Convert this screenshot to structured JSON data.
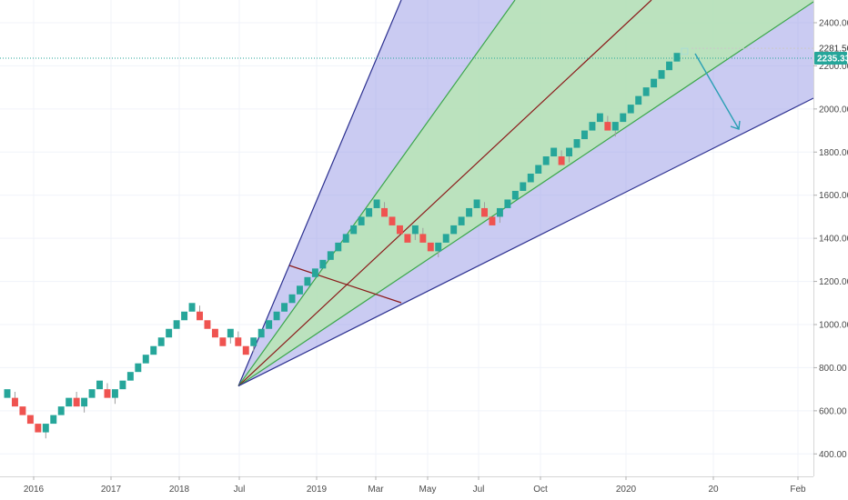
{
  "chart_data": {
    "type": "renko",
    "title": "",
    "xlabel": "",
    "ylabel": "",
    "ylim": [
      320,
      2500
    ],
    "y_ticks": [
      400,
      600,
      800,
      1000,
      1200,
      1400,
      1600,
      1800,
      2000,
      2200,
      2400
    ],
    "y_tick_labels": [
      "400.00",
      "600.00",
      "800.00",
      "1000.00",
      "1200.00",
      "1400.00",
      "1600.00",
      "1800.00",
      "2000.00",
      "2200.00",
      "2400.00"
    ],
    "x_tick_labels": [
      "2016",
      "2017",
      "2018",
      "Jul",
      "2019",
      "Mar",
      "May",
      "Jul",
      "Oct",
      "2020",
      "20",
      "Feb"
    ],
    "brick_size": 40,
    "colors": {
      "up": "#26a69a",
      "down": "#ef5350",
      "wick": "#9e9e9e"
    },
    "bricks": [
      {
        "d": 1,
        "y": 680
      },
      {
        "d": -1,
        "y": 640
      },
      {
        "d": -1,
        "y": 600
      },
      {
        "d": -1,
        "y": 560
      },
      {
        "d": -1,
        "y": 520
      },
      {
        "d": 1,
        "y": 520
      },
      {
        "d": 1,
        "y": 560
      },
      {
        "d": 1,
        "y": 600
      },
      {
        "d": 1,
        "y": 640
      },
      {
        "d": -1,
        "y": 640
      },
      {
        "d": 1,
        "y": 640
      },
      {
        "d": 1,
        "y": 680
      },
      {
        "d": 1,
        "y": 720
      },
      {
        "d": -1,
        "y": 680
      },
      {
        "d": 1,
        "y": 680
      },
      {
        "d": 1,
        "y": 720
      },
      {
        "d": 1,
        "y": 760
      },
      {
        "d": 1,
        "y": 800
      },
      {
        "d": 1,
        "y": 840
      },
      {
        "d": 1,
        "y": 880
      },
      {
        "d": 1,
        "y": 920
      },
      {
        "d": 1,
        "y": 960
      },
      {
        "d": 1,
        "y": 1000
      },
      {
        "d": 1,
        "y": 1040
      },
      {
        "d": 1,
        "y": 1080
      },
      {
        "d": -1,
        "y": 1040
      },
      {
        "d": -1,
        "y": 1000
      },
      {
        "d": -1,
        "y": 960
      },
      {
        "d": -1,
        "y": 920
      },
      {
        "d": 1,
        "y": 960
      },
      {
        "d": -1,
        "y": 920
      },
      {
        "d": -1,
        "y": 880
      },
      {
        "d": 1,
        "y": 920
      },
      {
        "d": 1,
        "y": 960
      },
      {
        "d": 1,
        "y": 1000
      },
      {
        "d": 1,
        "y": 1040
      },
      {
        "d": 1,
        "y": 1080
      },
      {
        "d": 1,
        "y": 1120
      },
      {
        "d": 1,
        "y": 1160
      },
      {
        "d": 1,
        "y": 1200
      },
      {
        "d": 1,
        "y": 1240
      },
      {
        "d": 1,
        "y": 1280
      },
      {
        "d": 1,
        "y": 1320
      },
      {
        "d": 1,
        "y": 1360
      },
      {
        "d": 1,
        "y": 1400
      },
      {
        "d": 1,
        "y": 1440
      },
      {
        "d": 1,
        "y": 1480
      },
      {
        "d": 1,
        "y": 1520
      },
      {
        "d": 1,
        "y": 1560
      },
      {
        "d": -1,
        "y": 1520
      },
      {
        "d": -1,
        "y": 1480
      },
      {
        "d": -1,
        "y": 1440
      },
      {
        "d": -1,
        "y": 1400
      },
      {
        "d": 1,
        "y": 1440
      },
      {
        "d": -1,
        "y": 1400
      },
      {
        "d": -1,
        "y": 1360
      },
      {
        "d": 1,
        "y": 1360
      },
      {
        "d": 1,
        "y": 1400
      },
      {
        "d": 1,
        "y": 1440
      },
      {
        "d": 1,
        "y": 1480
      },
      {
        "d": 1,
        "y": 1520
      },
      {
        "d": 1,
        "y": 1560
      },
      {
        "d": -1,
        "y": 1520
      },
      {
        "d": -1,
        "y": 1480
      },
      {
        "d": 1,
        "y": 1520
      },
      {
        "d": 1,
        "y": 1560
      },
      {
        "d": 1,
        "y": 1600
      },
      {
        "d": 1,
        "y": 1640
      },
      {
        "d": 1,
        "y": 1680
      },
      {
        "d": 1,
        "y": 1720
      },
      {
        "d": 1,
        "y": 1760
      },
      {
        "d": 1,
        "y": 1800
      },
      {
        "d": -1,
        "y": 1760
      },
      {
        "d": 1,
        "y": 1800
      },
      {
        "d": 1,
        "y": 1840
      },
      {
        "d": 1,
        "y": 1880
      },
      {
        "d": 1,
        "y": 1920
      },
      {
        "d": 1,
        "y": 1960
      },
      {
        "d": -1,
        "y": 1920
      },
      {
        "d": 1,
        "y": 1920
      },
      {
        "d": 1,
        "y": 1960
      },
      {
        "d": 1,
        "y": 2000
      },
      {
        "d": 1,
        "y": 2040
      },
      {
        "d": 1,
        "y": 2080
      },
      {
        "d": 1,
        "y": 2120
      },
      {
        "d": 1,
        "y": 2160
      },
      {
        "d": 1,
        "y": 2200
      },
      {
        "d": 1,
        "y": 2240
      }
    ],
    "pending_brick_top": 2281.5,
    "last_price": 2235.33,
    "last_price_label": "2235.33",
    "high_label": "2281.50",
    "annotations": {
      "gann_fan_origin_value": 715,
      "fan_fill_outer": "#9fa0e8",
      "fan_fill_inner": "#b8e6b5",
      "fan_line_outer": "#2b2f8f",
      "fan_line_inner": "#3aa64a",
      "fan_center": "#8b1a1a",
      "projection_arrow": "#2a9fb4"
    }
  }
}
